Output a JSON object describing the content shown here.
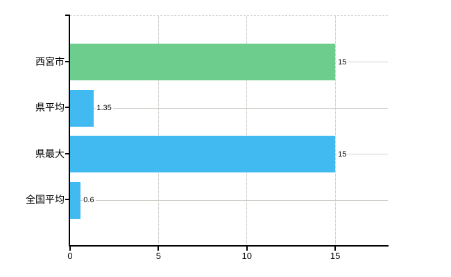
{
  "chart_data": {
    "type": "bar",
    "orientation": "horizontal",
    "title": "",
    "xlabel": "",
    "ylabel": "",
    "categories": [
      "西宮市",
      "県平均",
      "県最大",
      "全国平均"
    ],
    "values": [
      15,
      1.35,
      15,
      0.6
    ],
    "value_labels": [
      "15",
      "1.35",
      "15",
      "0.6"
    ],
    "bar_colors": [
      "#6CCD8C",
      "#41B9F1",
      "#41B9F1",
      "#41B9F1"
    ],
    "x_ticks": [
      "0",
      "5",
      "10",
      "15"
    ],
    "x_tick_values": [
      0,
      5,
      10,
      15
    ],
    "xlim": [
      0,
      17.98
    ],
    "grid": true,
    "legend_position": "none",
    "axis_color": "#000000",
    "gridline_color": "#cfcfc8",
    "background_color": "#ffffff"
  }
}
